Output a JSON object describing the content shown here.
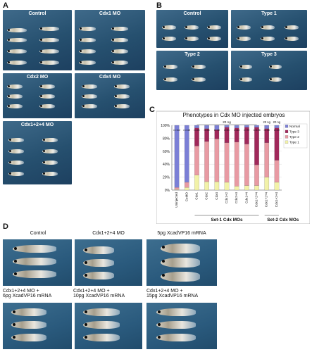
{
  "panels": {
    "A": {
      "label": "A",
      "groups": [
        {
          "caption": "Control"
        },
        {
          "caption": "Cdx1 MO"
        },
        {
          "caption": "Cdx2 MO"
        },
        {
          "caption": "Cdx4 MO"
        },
        {
          "caption": "Cdx1+2+4 MO"
        }
      ]
    },
    "B": {
      "label": "B",
      "groups": [
        {
          "caption": "Control"
        },
        {
          "caption": "Type 1"
        },
        {
          "caption": "Type 2"
        },
        {
          "caption": "Type 3"
        }
      ]
    },
    "C": {
      "label": "C"
    },
    "D": {
      "label": "D",
      "groups": [
        {
          "caption": "Control"
        },
        {
          "caption": "Cdx1+2+4 MO"
        },
        {
          "caption": "5pg XcadVP16 mRNA"
        },
        {
          "caption": "Cdx1+2+4 MO +\n6pg XcadVP16 mRNA"
        },
        {
          "caption": "Cdx1+2+4 MO +\n10pg XcadVP16 mRNA"
        },
        {
          "caption": "Cdx1+2+4 MO +\n15pg XcadVP16 mRNA"
        }
      ]
    }
  },
  "chart_data": {
    "type": "bar",
    "stacked": true,
    "title": "Phenotypes in Cdx MO injected embryos",
    "categories": [
      "Uninjected",
      "CoMO",
      "Cdx1",
      "Cdx2",
      "Cdx4",
      "Cdx1+2",
      "Cdx2+4",
      "Cdx1+4",
      "Cdx1+2+4",
      "Cdx1+2+4",
      "Cdx1+2+4"
    ],
    "n_labels": [
      "n=112",
      "n=115",
      "n=28",
      "n=56",
      "n=48",
      "n=51",
      "n=64",
      "n=72",
      "n=126",
      "n=38",
      "n=40"
    ],
    "series": [
      {
        "name": "Normal",
        "color": "#7b7fd6",
        "values": [
          96,
          88,
          4,
          5,
          7,
          3,
          4,
          3,
          3,
          5,
          4
        ]
      },
      {
        "name": "Type 3",
        "color": "#a0285a",
        "values": [
          0,
          0,
          28,
          20,
          14,
          24,
          22,
          26,
          58,
          22,
          50
        ]
      },
      {
        "name": "Type 2",
        "color": "#e89aa3",
        "values": [
          3,
          8,
          45,
          62,
          66,
          61,
          68,
          64,
          32,
          53,
          34
        ]
      },
      {
        "name": "Type 1",
        "color": "#f2f2a8",
        "values": [
          1,
          4,
          23,
          13,
          13,
          12,
          6,
          7,
          7,
          20,
          12
        ]
      }
    ],
    "ylim": [
      0,
      100
    ],
    "yticks": [
      "0%",
      "20%",
      "40%",
      "60%",
      "80%",
      "100%"
    ],
    "dose_labels": [
      "20 ng",
      "20 ng",
      "20 ng"
    ],
    "group_labels": [
      "Set-1 Cdx MOs",
      "Set-2 Cdx MOs"
    ],
    "legend": [
      "Normal",
      "Type 3",
      "Type 2",
      "Type 1"
    ],
    "legend_position": "right"
  }
}
